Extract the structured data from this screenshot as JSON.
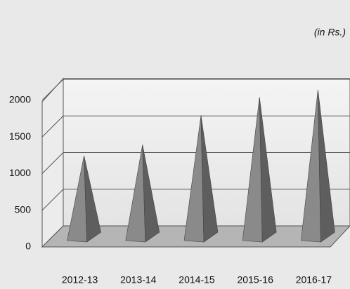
{
  "chart_data": {
    "type": "pyramid",
    "unit_note": "(in Rs.)",
    "categories": [
      "2012-13",
      "2013-14",
      "2014-15",
      "2015-16",
      "2016-17"
    ],
    "values": [
      1100,
      1250,
      1650,
      1900,
      2000
    ],
    "color": "#8a8a8a",
    "ylim": [
      0,
      2000
    ],
    "yticks": [
      0,
      500,
      1000,
      1500,
      2000
    ],
    "grid": true
  }
}
